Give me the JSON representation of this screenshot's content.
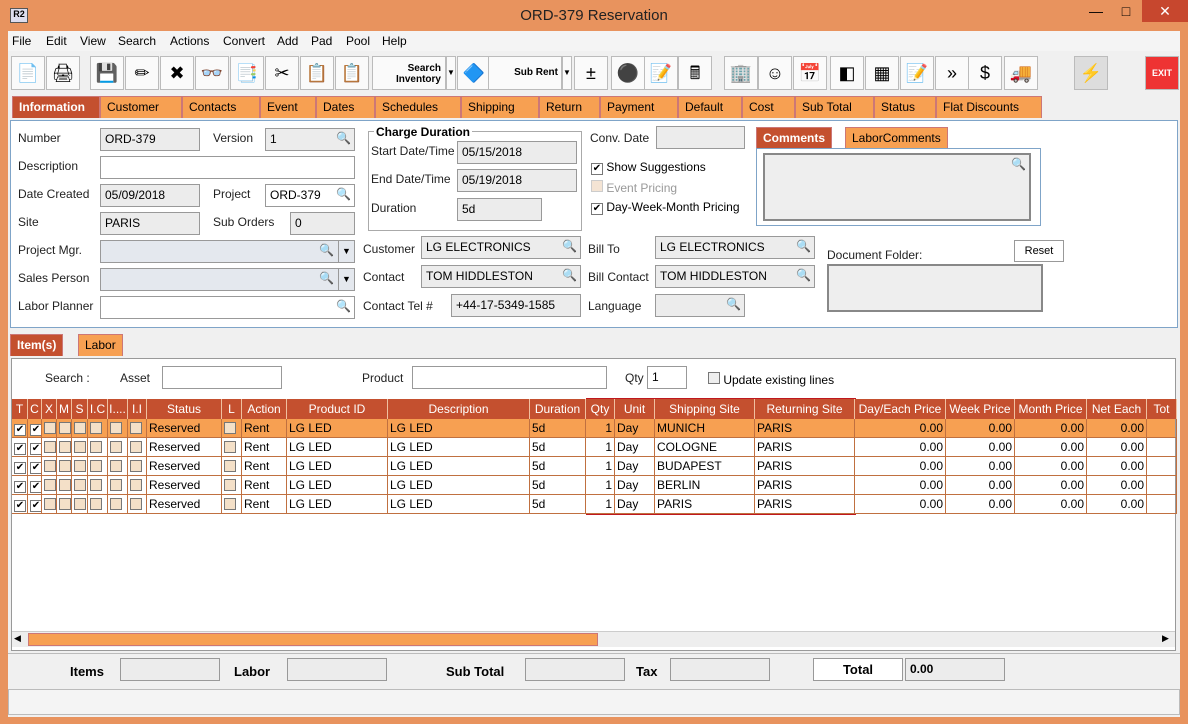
{
  "window": {
    "title": "ORD-379 Reservation",
    "app_icon": "R2",
    "minimize": "—",
    "maximize": "□",
    "close": "✕"
  },
  "menu": [
    "File",
    "Edit",
    "View",
    "Search",
    "Actions",
    "Convert",
    "Add",
    "Pad",
    "Pool",
    "Help"
  ],
  "toolbar": {
    "search_inventory": "Search Inventory",
    "sub_rent": "Sub Rent",
    "exit": "EXIT",
    "icons": [
      "new-document-icon",
      "print-icon",
      "save-icon",
      "edit-pencil-icon",
      "delete-icon",
      "binoculars-icon",
      "copy-document-icon",
      "cut-icon",
      "copy-icon",
      "paste-icon"
    ],
    "icons2": [
      "add-remove-icon",
      "group-icon",
      "checklist-icon",
      "calculator-icon",
      "hierarchy-icon",
      "smiley-icon",
      "schedule-icon",
      "eraser-icon",
      "cubes-icon",
      "edit-form-icon",
      "transfer-icon",
      "invoice-icon",
      "truck-icon",
      "lightning-icon"
    ]
  },
  "tabs": [
    "Information",
    "Customer",
    "Contacts",
    "Event",
    "Dates",
    "Schedules",
    "Shipping",
    "Return",
    "Payment",
    "Default",
    "Cost",
    "Sub Total",
    "Status",
    "Flat Discounts"
  ],
  "info": {
    "number_label": "Number",
    "number": "ORD-379",
    "version_label": "Version",
    "version": "1",
    "description_label": "Description",
    "description": "",
    "date_created_label": "Date Created",
    "date_created": "05/09/2018",
    "project_label": "Project",
    "project": "ORD-379",
    "site_label": "Site",
    "site": "PARIS",
    "sub_orders_label": "Sub Orders",
    "sub_orders": "0",
    "project_mgr_label": "Project Mgr.",
    "sales_person_label": "Sales Person",
    "labor_planner_label": "Labor Planner",
    "charge_duration_title": "Charge Duration",
    "start_label": "Start Date/Time",
    "start": "05/15/2018",
    "end_label": "End Date/Time",
    "end": "05/19/2018",
    "duration_label": "Duration",
    "duration": "5d",
    "customer_label": "Customer",
    "customer": "LG ELECTRONICS",
    "contact_label": "Contact",
    "contact": "TOM HIDDLESTON",
    "contact_tel_label": "Contact Tel #",
    "contact_tel": "+44-17-5349-1585",
    "bill_to_label": "Bill To",
    "bill_to": "LG ELECTRONICS",
    "bill_contact_label": "Bill Contact",
    "bill_contact": "TOM HIDDLESTON",
    "language_label": "Language",
    "language": "",
    "conv_date_label": "Conv. Date",
    "conv_date": "",
    "show_suggestions": "Show Suggestions",
    "show_suggestions_checked": true,
    "event_pricing": "Event Pricing",
    "event_pricing_checked": false,
    "dwm_pricing": "Day-Week-Month Pricing",
    "dwm_pricing_checked": true,
    "comments_tabs": [
      "Comments",
      "LaborComments"
    ],
    "document_folder_label": "Document Folder:",
    "reset": "Reset"
  },
  "item_tabs": [
    "Item(s)",
    "Labor"
  ],
  "search": {
    "label": "Search :",
    "asset_label": "Asset",
    "product_label": "Product",
    "qty_label": "Qty",
    "qty": "1",
    "update_existing": "Update existing lines"
  },
  "grid": {
    "columns": [
      "T",
      "C",
      "X",
      "M",
      "S",
      "I.C",
      "I....",
      "I.I",
      "Status",
      "L",
      "Action",
      "Product ID",
      "Description",
      "Duration",
      "Qty",
      "Unit",
      "Shipping Site",
      "Returning Site",
      "Day/Each Price",
      "Week Price",
      "Month Price",
      "Net Each",
      "Tot"
    ],
    "rows": [
      {
        "t": true,
        "c": true,
        "status": "Reserved",
        "action": "Rent",
        "product_id": "LG LED",
        "description": "LG LED",
        "duration": "5d",
        "qty": "1",
        "unit": "Day",
        "shipping": "MUNICH",
        "returning": "PARIS",
        "day": "0.00",
        "week": "0.00",
        "month": "0.00",
        "net": "0.00"
      },
      {
        "t": true,
        "c": true,
        "status": "Reserved",
        "action": "Rent",
        "product_id": "LG LED",
        "description": "LG LED",
        "duration": "5d",
        "qty": "1",
        "unit": "Day",
        "shipping": "COLOGNE",
        "returning": "PARIS",
        "day": "0.00",
        "week": "0.00",
        "month": "0.00",
        "net": "0.00"
      },
      {
        "t": true,
        "c": true,
        "status": "Reserved",
        "action": "Rent",
        "product_id": "LG LED",
        "description": "LG LED",
        "duration": "5d",
        "qty": "1",
        "unit": "Day",
        "shipping": "BUDAPEST",
        "returning": "PARIS",
        "day": "0.00",
        "week": "0.00",
        "month": "0.00",
        "net": "0.00"
      },
      {
        "t": true,
        "c": true,
        "status": "Reserved",
        "action": "Rent",
        "product_id": "LG LED",
        "description": "LG LED",
        "duration": "5d",
        "qty": "1",
        "unit": "Day",
        "shipping": "BERLIN",
        "returning": "PARIS",
        "day": "0.00",
        "week": "0.00",
        "month": "0.00",
        "net": "0.00"
      },
      {
        "t": true,
        "c": true,
        "status": "Reserved",
        "action": "Rent",
        "product_id": "LG LED",
        "description": "LG LED",
        "duration": "5d",
        "qty": "1",
        "unit": "Day",
        "shipping": "PARIS",
        "returning": "PARIS",
        "day": "0.00",
        "week": "0.00",
        "month": "0.00",
        "net": "0.00"
      }
    ],
    "selected_row": 0
  },
  "totals": {
    "items_label": "Items",
    "labor_label": "Labor",
    "subtotal_label": "Sub Total",
    "tax_label": "Tax",
    "total_label": "Total",
    "total": "0.00"
  },
  "colors": {
    "accent": "#C4502F",
    "tab": "#F7A052",
    "frame": "#E8935E",
    "highlight_box": "#C0181E"
  }
}
